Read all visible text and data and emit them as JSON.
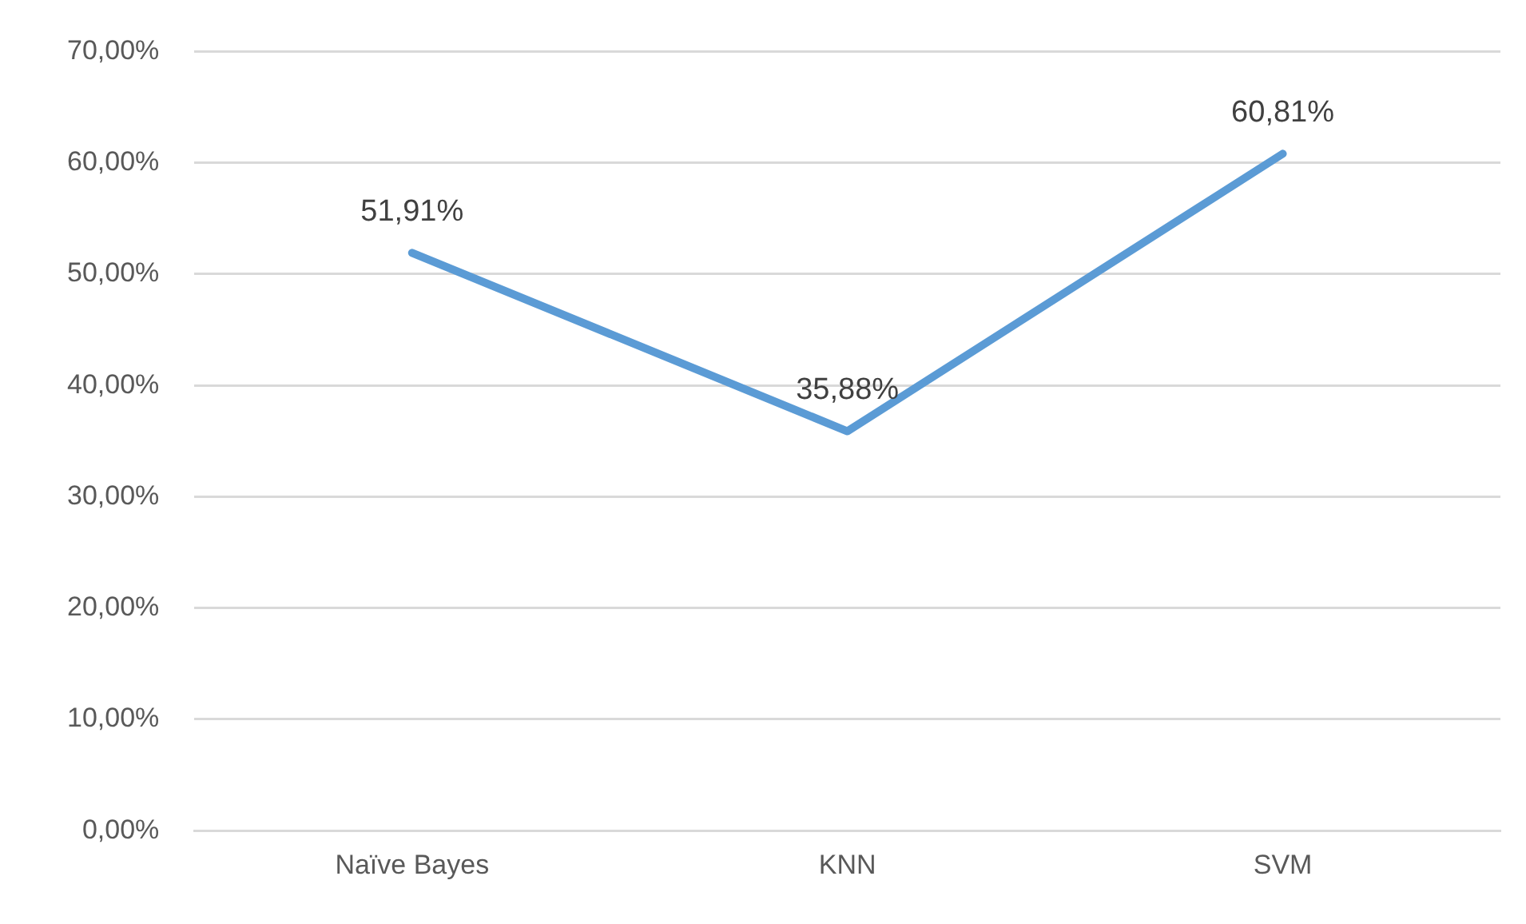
{
  "chart_data": {
    "type": "line",
    "categories": [
      "Naïve Bayes",
      "KNN",
      "SVM"
    ],
    "series": [
      {
        "color": "#5b9bd5",
        "values": [
          51.91,
          35.88,
          60.81
        ],
        "value_labels": [
          "51,91%",
          "35,88%",
          "60,81%"
        ]
      }
    ],
    "ylim": [
      0,
      70
    ],
    "yticks": [
      {
        "value": 0,
        "label": "0,00%"
      },
      {
        "value": 10,
        "label": "10,00%"
      },
      {
        "value": 20,
        "label": "20,00%"
      },
      {
        "value": 30,
        "label": "30,00%"
      },
      {
        "value": 40,
        "label": "40,00%"
      },
      {
        "value": 50,
        "label": "50,00%"
      },
      {
        "value": 60,
        "label": "60,00%"
      },
      {
        "value": 70,
        "label": "70,00%"
      }
    ],
    "grid": "y",
    "legend": false,
    "marker": "none",
    "line_style": "solid"
  }
}
